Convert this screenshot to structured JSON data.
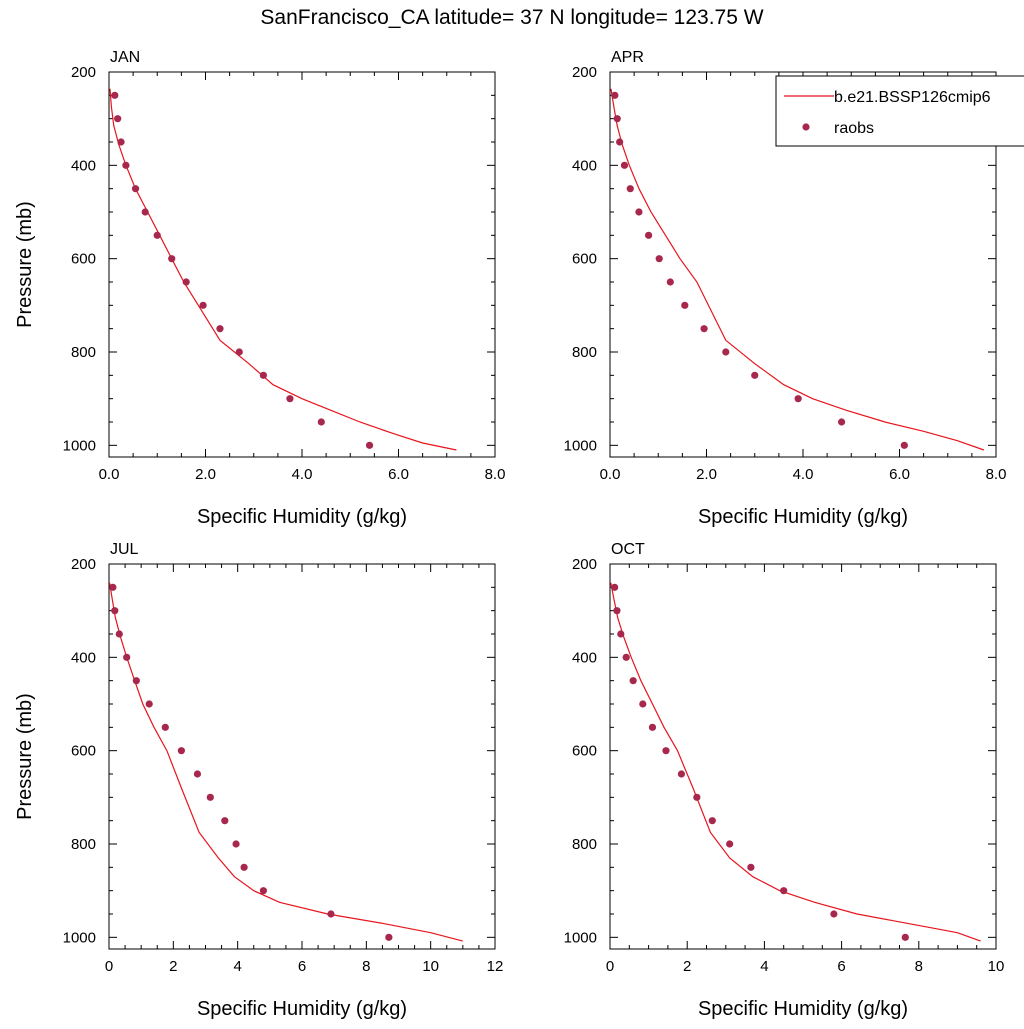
{
  "figure": {
    "title": "SanFrancisco_CA  latitude= 37 N longitude= 123.75 W",
    "xlabel": "Specific Humidity (g/kg)",
    "ylabel": "Pressure (mb)"
  },
  "legend": {
    "model_label": "b.e21.BSSP126cmip6",
    "obs_label": "raobs",
    "placement": "top-right, overlapping APR panel"
  },
  "colors": {
    "model_line": "#e8141c",
    "obs_marker": "#a8284d",
    "axis": "#000000"
  },
  "chart_data": [
    {
      "type": "line",
      "title": "JAN",
      "xlabel": "Specific Humidity (g/kg)",
      "ylabel": "Pressure (mb)",
      "xlim": [
        0,
        8
      ],
      "ylim": [
        1025,
        200
      ],
      "y_inverted": true,
      "xticks": [
        0,
        2,
        4,
        6,
        8
      ],
      "xtick_labels": [
        "0.0",
        "2.0",
        "4.0",
        "6.0",
        "8.0"
      ],
      "yticks": [
        200,
        400,
        600,
        800,
        1000
      ],
      "ytick_labels": [
        "200",
        "400",
        "600",
        "800",
        "1000"
      ],
      "series": [
        {
          "name": "b.e21.BSSP126cmip6",
          "kind": "line",
          "x": [
            0.02,
            0.05,
            0.1,
            0.2,
            0.35,
            0.55,
            0.8,
            1.05,
            1.3,
            1.55,
            1.85,
            2.3,
            2.9,
            3.4,
            4.0,
            4.6,
            5.2,
            5.9,
            6.5,
            7.2
          ],
          "y": [
            236,
            275,
            315,
            355,
            400,
            450,
            500,
            550,
            600,
            650,
            700,
            775,
            825,
            870,
            900,
            925,
            950,
            975,
            995,
            1010
          ]
        },
        {
          "name": "raobs",
          "kind": "scatter",
          "x": [
            0.12,
            0.18,
            0.25,
            0.35,
            0.55,
            0.75,
            1.0,
            1.3,
            1.6,
            1.95,
            2.3,
            2.7,
            3.2,
            3.75,
            4.4,
            5.4
          ],
          "y": [
            250,
            300,
            350,
            400,
            450,
            500,
            550,
            600,
            650,
            700,
            750,
            800,
            850,
            900,
            950,
            1000
          ]
        }
      ]
    },
    {
      "type": "line",
      "title": "APR",
      "xlabel": "Specific Humidity (g/kg)",
      "ylabel": "",
      "xlim": [
        0,
        8
      ],
      "ylim": [
        1025,
        200
      ],
      "y_inverted": true,
      "xticks": [
        0,
        2,
        4,
        6,
        8
      ],
      "xtick_labels": [
        "0.0",
        "2.0",
        "4.0",
        "6.0",
        "8.0"
      ],
      "yticks": [
        200,
        400,
        600,
        800,
        1000
      ],
      "ytick_labels": [
        "200",
        "400",
        "600",
        "800",
        "1000"
      ],
      "series": [
        {
          "name": "b.e21.BSSP126cmip6",
          "kind": "line",
          "x": [
            0.02,
            0.08,
            0.15,
            0.25,
            0.4,
            0.6,
            0.85,
            1.15,
            1.45,
            1.8,
            2.4,
            3.0,
            3.6,
            4.2,
            4.9,
            5.7,
            6.5,
            7.2,
            7.75
          ],
          "y": [
            236,
            275,
            315,
            355,
            400,
            450,
            500,
            550,
            600,
            650,
            775,
            825,
            870,
            900,
            925,
            950,
            970,
            990,
            1010
          ]
        },
        {
          "name": "raobs",
          "kind": "scatter",
          "x": [
            0.1,
            0.15,
            0.2,
            0.3,
            0.42,
            0.6,
            0.8,
            1.02,
            1.25,
            1.55,
            1.95,
            2.4,
            3.0,
            3.9,
            4.8,
            6.1
          ],
          "y": [
            250,
            300,
            350,
            400,
            450,
            500,
            550,
            600,
            650,
            700,
            750,
            800,
            850,
            900,
            950,
            1000
          ]
        }
      ]
    },
    {
      "type": "line",
      "title": "JUL",
      "xlabel": "Specific Humidity (g/kg)",
      "ylabel": "Pressure (mb)",
      "xlim": [
        0,
        12
      ],
      "ylim": [
        1025,
        200
      ],
      "y_inverted": true,
      "xticks": [
        0,
        2,
        4,
        6,
        8,
        10,
        12
      ],
      "xtick_labels": [
        "0",
        "2",
        "4",
        "6",
        "8",
        "10",
        "12"
      ],
      "yticks": [
        200,
        400,
        600,
        800,
        1000
      ],
      "ytick_labels": [
        "200",
        "400",
        "600",
        "800",
        "1000"
      ],
      "series": [
        {
          "name": "b.e21.BSSP126cmip6",
          "kind": "line",
          "x": [
            0.02,
            0.1,
            0.2,
            0.35,
            0.55,
            0.8,
            1.05,
            1.4,
            1.8,
            2.25,
            2.8,
            3.4,
            3.9,
            4.5,
            5.3,
            6.8,
            8.5,
            10.0,
            11.0
          ],
          "y": [
            240,
            275,
            315,
            355,
            400,
            450,
            500,
            550,
            600,
            680,
            775,
            830,
            870,
            900,
            925,
            950,
            970,
            990,
            1008
          ]
        },
        {
          "name": "raobs",
          "kind": "scatter",
          "x": [
            0.12,
            0.18,
            0.32,
            0.55,
            0.85,
            1.25,
            1.75,
            2.25,
            2.75,
            3.15,
            3.6,
            3.95,
            4.2,
            4.8,
            6.9,
            8.7
          ],
          "y": [
            250,
            300,
            350,
            400,
            450,
            500,
            550,
            600,
            650,
            700,
            750,
            800,
            850,
            900,
            950,
            1000
          ]
        }
      ]
    },
    {
      "type": "line",
      "title": "OCT",
      "xlabel": "Specific Humidity (g/kg)",
      "ylabel": "",
      "xlim": [
        0,
        10
      ],
      "ylim": [
        1025,
        200
      ],
      "y_inverted": true,
      "xticks": [
        0,
        2,
        4,
        6,
        8,
        10
      ],
      "xtick_labels": [
        "0",
        "2",
        "4",
        "6",
        "8",
        "10"
      ],
      "yticks": [
        200,
        400,
        600,
        800,
        1000
      ],
      "ytick_labels": [
        "200",
        "400",
        "600",
        "800",
        "1000"
      ],
      "series": [
        {
          "name": "b.e21.BSSP126cmip6",
          "kind": "line",
          "x": [
            0.02,
            0.1,
            0.2,
            0.35,
            0.55,
            0.8,
            1.1,
            1.4,
            1.75,
            2.15,
            2.6,
            3.1,
            3.7,
            4.4,
            5.3,
            6.4,
            7.7,
            9.0,
            9.6
          ],
          "y": [
            240,
            275,
            315,
            355,
            400,
            450,
            500,
            550,
            600,
            680,
            775,
            830,
            870,
            900,
            925,
            950,
            970,
            990,
            1008
          ]
        },
        {
          "name": "raobs",
          "kind": "scatter",
          "x": [
            0.12,
            0.18,
            0.28,
            0.42,
            0.6,
            0.85,
            1.1,
            1.45,
            1.85,
            2.25,
            2.65,
            3.1,
            3.65,
            4.5,
            5.8,
            7.65
          ],
          "y": [
            250,
            300,
            350,
            400,
            450,
            500,
            550,
            600,
            650,
            700,
            750,
            800,
            850,
            900,
            950,
            1000
          ]
        }
      ]
    }
  ]
}
